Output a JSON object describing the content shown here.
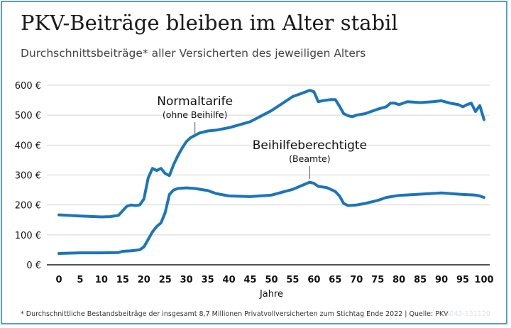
{
  "header": {
    "title": "PKV-Beiträge bleiben im Alter stabil",
    "subtitle": "Durchschnittsbeiträge* aller Versicherten des jeweiligen Alters"
  },
  "footer": {
    "footnote": "* Durchschnittliche Bestandsbeiträge der insgesamt 8,7 Millionen Privatvollversicherten zum Stichtag Ende 2022   |   Quelle: PKV",
    "code": "0043-131120"
  },
  "colors": {
    "series": "#1b75bb",
    "grid": "#d4d4d4",
    "annotation_line": "#555555"
  },
  "chart_data": {
    "type": "line",
    "xlabel": "Jahre",
    "ylabel": "",
    "xlim": [
      0,
      100
    ],
    "ylim": [
      0,
      600
    ],
    "x_ticks": [
      "0",
      "5",
      "10",
      "15",
      "20",
      "25",
      "30",
      "35",
      "40",
      "45",
      "50",
      "55",
      "60",
      "65",
      "70",
      "75",
      "80",
      "85",
      "90",
      "95",
      "100"
    ],
    "y_ticks": [
      "0 €",
      "100 €",
      "200 €",
      "300 €",
      "400 €",
      "500 €",
      "600 €"
    ],
    "grid": "horizontal",
    "series": [
      {
        "name": "Normaltarife",
        "label_main": "Normaltarife",
        "label_sub": "(ohne Beihilfe)",
        "label_anchor": [
          32,
          440
        ],
        "points": [
          [
            0,
            167
          ],
          [
            5,
            163
          ],
          [
            10,
            160
          ],
          [
            12,
            161
          ],
          [
            14,
            165
          ],
          [
            16,
            196
          ],
          [
            17,
            200
          ],
          [
            18,
            198
          ],
          [
            19,
            200
          ],
          [
            20,
            220
          ],
          [
            21,
            290
          ],
          [
            22,
            322
          ],
          [
            23,
            315
          ],
          [
            24,
            322
          ],
          [
            25,
            305
          ],
          [
            26,
            298
          ],
          [
            27,
            335
          ],
          [
            28,
            365
          ],
          [
            29,
            390
          ],
          [
            30,
            412
          ],
          [
            31,
            425
          ],
          [
            32,
            432
          ],
          [
            33,
            440
          ],
          [
            35,
            447
          ],
          [
            37,
            450
          ],
          [
            40,
            458
          ],
          [
            45,
            478
          ],
          [
            50,
            515
          ],
          [
            55,
            562
          ],
          [
            57,
            572
          ],
          [
            59,
            583
          ],
          [
            60,
            578
          ],
          [
            61,
            545
          ],
          [
            62,
            548
          ],
          [
            64,
            552
          ],
          [
            65,
            552
          ],
          [
            66,
            530
          ],
          [
            67,
            505
          ],
          [
            68,
            498
          ],
          [
            69,
            495
          ],
          [
            70,
            500
          ],
          [
            72,
            505
          ],
          [
            75,
            520
          ],
          [
            77,
            528
          ],
          [
            78,
            540
          ],
          [
            79,
            540
          ],
          [
            80,
            535
          ],
          [
            82,
            545
          ],
          [
            85,
            542
          ],
          [
            88,
            545
          ],
          [
            90,
            548
          ],
          [
            92,
            540
          ],
          [
            94,
            535
          ],
          [
            95,
            528
          ],
          [
            96,
            535
          ],
          [
            97,
            540
          ],
          [
            98,
            512
          ],
          [
            99,
            532
          ],
          [
            100,
            485
          ]
        ]
      },
      {
        "name": "Beihilfeberechtigte",
        "label_main": "Beihilfeberechtigte",
        "label_sub": "(Beamte)",
        "label_anchor": [
          59,
          276
        ],
        "points": [
          [
            0,
            38
          ],
          [
            5,
            40
          ],
          [
            10,
            40
          ],
          [
            14,
            41
          ],
          [
            15,
            45
          ],
          [
            17,
            47
          ],
          [
            19,
            50
          ],
          [
            20,
            60
          ],
          [
            21,
            85
          ],
          [
            22,
            110
          ],
          [
            23,
            128
          ],
          [
            24,
            140
          ],
          [
            25,
            175
          ],
          [
            26,
            235
          ],
          [
            27,
            250
          ],
          [
            28,
            255
          ],
          [
            30,
            257
          ],
          [
            32,
            255
          ],
          [
            35,
            248
          ],
          [
            37,
            238
          ],
          [
            40,
            230
          ],
          [
            45,
            228
          ],
          [
            50,
            233
          ],
          [
            55,
            252
          ],
          [
            58,
            270
          ],
          [
            59,
            276
          ],
          [
            60,
            272
          ],
          [
            61,
            262
          ],
          [
            63,
            258
          ],
          [
            65,
            245
          ],
          [
            66,
            230
          ],
          [
            67,
            205
          ],
          [
            68,
            198
          ],
          [
            70,
            200
          ],
          [
            72,
            205
          ],
          [
            75,
            215
          ],
          [
            77,
            225
          ],
          [
            80,
            232
          ],
          [
            85,
            236
          ],
          [
            90,
            240
          ],
          [
            95,
            235
          ],
          [
            98,
            233
          ],
          [
            99,
            230
          ],
          [
            100,
            225
          ]
        ]
      }
    ]
  }
}
